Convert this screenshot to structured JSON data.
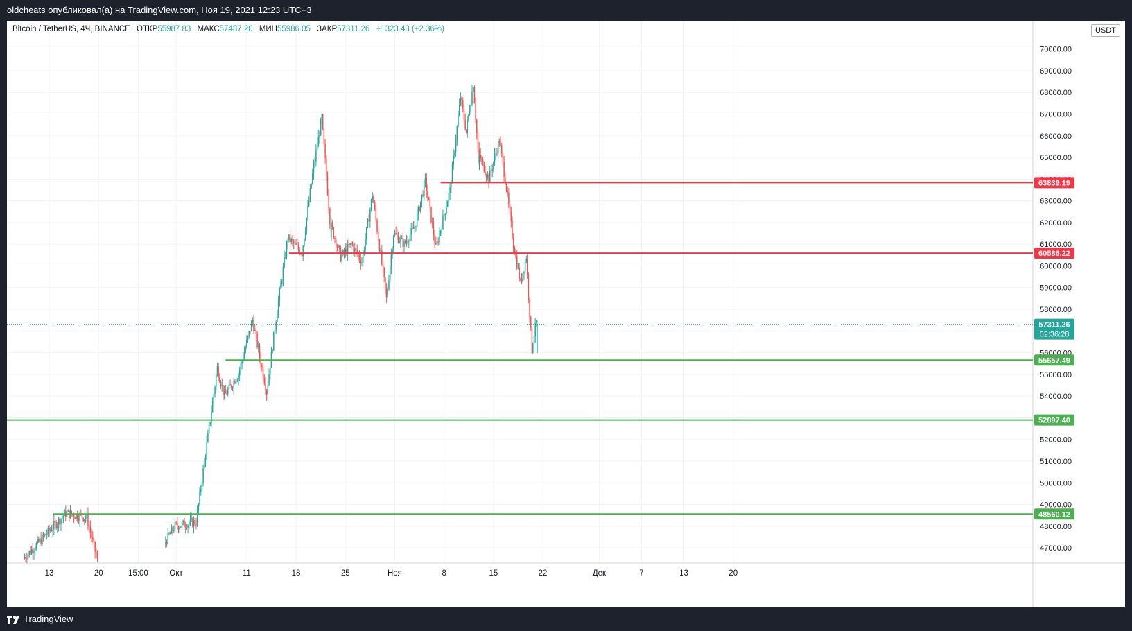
{
  "header": {
    "publish_line": "oldcheats опубликовал(а) на TradingView.com, Ноя 19, 2021 12:23 UTC+3"
  },
  "legend": {
    "symbol": "Bitcoin / TetherUS, 4Ч, BINANCE",
    "open_label": "ОТКР",
    "open_value": "55987.83",
    "high_label": "МАКС",
    "high_value": "57487.20",
    "low_label": "МИН",
    "low_value": "55986.05",
    "close_label": "ЗАКР",
    "close_value": "57311.26",
    "change": "+1323.43 (+2.36%)"
  },
  "currency_badge": "USDT",
  "footer": {
    "brand": "TradingView"
  },
  "colors": {
    "up": "#26a69a",
    "down": "#ef5350",
    "resistance": "#f23645",
    "support": "#4caf50",
    "last_price": "#26a69a",
    "grid": "#f0f3fa"
  },
  "chart_data": {
    "type": "candlestick",
    "interval": "4h",
    "ylim": [
      46300,
      71300
    ],
    "y_ticks": [
      47000,
      48000,
      49000,
      50000,
      51000,
      52000,
      53000,
      54000,
      55000,
      56000,
      57000,
      58000,
      59000,
      60000,
      61000,
      62000,
      63000,
      64000,
      65000,
      66000,
      67000,
      68000,
      69000,
      70000
    ],
    "y_tick_labels": [
      "47000.00",
      "48000.00",
      "49000.00",
      "50000.00",
      "51000.00",
      "52000.00",
      "53000.00",
      "54000.00",
      "55000.00",
      "56000.00",
      "57000.00",
      "58000.00",
      "59000.00",
      "60000.00",
      "61000.00",
      "62000.00",
      "63000.00",
      "64000.00",
      "65000.00",
      "66000.00",
      "67000.00",
      "68000.00",
      "69000.00",
      "70000.00"
    ],
    "x_range_days": [
      -6,
      139.5
    ],
    "x_ticks": [
      {
        "day": 0,
        "label": "13"
      },
      {
        "day": 7,
        "label": "20"
      },
      {
        "day": 12.625,
        "label": "15:00"
      },
      {
        "day": 18,
        "label": "Окт"
      },
      {
        "day": 28,
        "label": "11"
      },
      {
        "day": 35,
        "label": "18"
      },
      {
        "day": 42,
        "label": "25"
      },
      {
        "day": 49,
        "label": "Ноя"
      },
      {
        "day": 56,
        "label": "8"
      },
      {
        "day": 63,
        "label": "15"
      },
      {
        "day": 70,
        "label": "22"
      },
      {
        "day": 78,
        "label": "Дек"
      },
      {
        "day": 84,
        "label": "7"
      },
      {
        "day": 90,
        "label": "13"
      },
      {
        "day": 97,
        "label": "20"
      }
    ],
    "key_points": [
      {
        "day": -3.5,
        "price": 46500
      },
      {
        "day": 2.5,
        "price": 48600
      },
      {
        "day": 5.5,
        "price": 48400
      },
      {
        "day": 7,
        "price": 46400
      },
      {
        "day": 16.5,
        "price": 47200
      },
      {
        "day": 18,
        "price": 48000
      },
      {
        "day": 21,
        "price": 48200
      },
      {
        "day": 24,
        "price": 55300
      },
      {
        "day": 25,
        "price": 54000
      },
      {
        "day": 27,
        "price": 55000
      },
      {
        "day": 29,
        "price": 57500
      },
      {
        "day": 31,
        "price": 54200
      },
      {
        "day": 32.5,
        "price": 58000
      },
      {
        "day": 34,
        "price": 61300
      },
      {
        "day": 36,
        "price": 60600
      },
      {
        "day": 37.5,
        "price": 64200
      },
      {
        "day": 38.8,
        "price": 66800
      },
      {
        "day": 40,
        "price": 62000
      },
      {
        "day": 41.5,
        "price": 60400
      },
      {
        "day": 43,
        "price": 61000
      },
      {
        "day": 44.5,
        "price": 60200
      },
      {
        "day": 46,
        "price": 63300
      },
      {
        "day": 48,
        "price": 58500
      },
      {
        "day": 49,
        "price": 61500
      },
      {
        "day": 50.5,
        "price": 61000
      },
      {
        "day": 52,
        "price": 61800
      },
      {
        "day": 53.5,
        "price": 63900
      },
      {
        "day": 55,
        "price": 60800
      },
      {
        "day": 57,
        "price": 63500
      },
      {
        "day": 58.5,
        "price": 67800
      },
      {
        "day": 59.3,
        "price": 66200
      },
      {
        "day": 60.3,
        "price": 68400
      },
      {
        "day": 61,
        "price": 65200
      },
      {
        "day": 62.5,
        "price": 64000
      },
      {
        "day": 64,
        "price": 65800
      },
      {
        "day": 65,
        "price": 63600
      },
      {
        "day": 66,
        "price": 61000
      },
      {
        "day": 67,
        "price": 59200
      },
      {
        "day": 67.8,
        "price": 60400
      },
      {
        "day": 68.6,
        "price": 56300
      },
      {
        "day": 69.2,
        "price": 57311
      }
    ],
    "levels": [
      {
        "price": 63839.19,
        "label": "63839.19",
        "kind": "resistance",
        "from_day": 55.5
      },
      {
        "price": 60586.22,
        "label": "60586.22",
        "kind": "resistance",
        "from_day": 34
      },
      {
        "price": 55657.49,
        "label": "55657.49",
        "kind": "support",
        "from_day": 25
      },
      {
        "price": 52897.4,
        "label": "52897.40",
        "kind": "support",
        "from_day": -6
      },
      {
        "price": 48560.12,
        "label": "48560.12",
        "kind": "support",
        "from_day": 0.5
      }
    ],
    "last_price": {
      "price": 57311.26,
      "label": "57311.26",
      "countdown": "02:36:28"
    }
  }
}
